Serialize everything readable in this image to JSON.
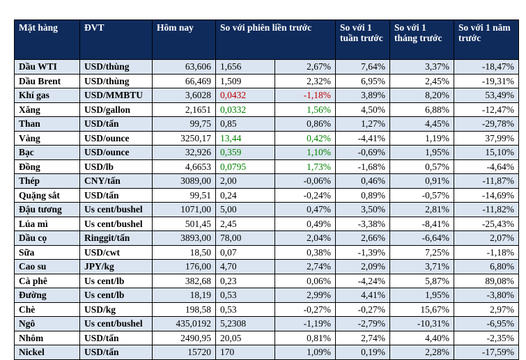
{
  "headers": {
    "item": "Mặt hàng",
    "unit": "ĐVT",
    "today": "Hôm nay",
    "vs_prev": "So với phiên liền trước",
    "vs_week": "So với 1 tuần trước",
    "vs_month": "So với 1 tháng trước",
    "vs_year": "So với 1 năm trước"
  },
  "rows": [
    {
      "item": "Dầu WTI",
      "unit": "USD/thùng",
      "today": "63,606",
      "chg": "1,656",
      "pct": "2,67%",
      "week": "7,64%",
      "month": "3,37%",
      "year": "-18,47%",
      "color": ""
    },
    {
      "item": "Dầu Brent",
      "unit": "USD/thùng",
      "today": "66,469",
      "chg": "1,509",
      "pct": "2,32%",
      "week": "6,95%",
      "month": "2,45%",
      "year": "-19,31%",
      "color": ""
    },
    {
      "item": "Khí gas",
      "unit": "USD/MMBTU",
      "today": "3,6028",
      "chg": "0,0432",
      "pct": "-1,18%",
      "week": "3,89%",
      "month": "8,20%",
      "year": "53,49%",
      "color": "red"
    },
    {
      "item": "Xăng",
      "unit": "USD/gallon",
      "today": "2,1651",
      "chg": "0,0332",
      "pct": "1,56%",
      "week": "4,50%",
      "month": "6,88%",
      "year": "-12,47%",
      "color": "green"
    },
    {
      "item": "Than",
      "unit": "USD/tấn",
      "today": "99,75",
      "chg": "0,85",
      "pct": "0,86%",
      "week": "1,27%",
      "month": "4,45%",
      "year": "-29,78%",
      "color": ""
    },
    {
      "item": "Vàng",
      "unit": "USD/ounce",
      "today": "3250,17",
      "chg": "13,44",
      "pct": "0,42%",
      "week": "-4,41%",
      "month": "1,19%",
      "year": "37,99%",
      "color": "green"
    },
    {
      "item": "Bạc",
      "unit": "USD/ounce",
      "today": "32,926",
      "chg": "0,359",
      "pct": "1,10%",
      "week": "-0,69%",
      "month": "1,95%",
      "year": "15,10%",
      "color": "green"
    },
    {
      "item": "Đồng",
      "unit": "USD/lb",
      "today": "4,6653",
      "chg": "0,0795",
      "pct": "1,73%",
      "week": "-1,68%",
      "month": "0,57%",
      "year": "-4,64%",
      "color": "green"
    },
    {
      "item": "Thép",
      "unit": "CNY/tấn",
      "today": "3089,00",
      "chg": "2,00",
      "pct": "-0,06%",
      "week": "0,46%",
      "month": "0,91%",
      "year": "-11,87%",
      "color": ""
    },
    {
      "item": "Quặng sắt",
      "unit": "USD/tấn",
      "today": "99,51",
      "chg": "0,24",
      "pct": "-0,24%",
      "week": "0,89%",
      "month": "-0,57%",
      "year": "-14,69%",
      "color": ""
    },
    {
      "item": "Đậu tương",
      "unit": "Us cent/bushel",
      "today": "1071,00",
      "chg": "5,00",
      "pct": "0,47%",
      "week": "3,50%",
      "month": "2,81%",
      "year": "-11,82%",
      "color": ""
    },
    {
      "item": "Lúa mì",
      "unit": "Us cent/bushel",
      "today": "501,45",
      "chg": "2,45",
      "pct": "0,49%",
      "week": "-3,38%",
      "month": "-8,41%",
      "year": "-25,43%",
      "color": ""
    },
    {
      "item": "Dầu cọ",
      "unit": "Ringgit/tấn",
      "today": "3893,00",
      "chg": "78,00",
      "pct": "2,04%",
      "week": "2,66%",
      "month": "-6,64%",
      "year": "2,07%",
      "color": ""
    },
    {
      "item": "Sữa",
      "unit": "USD/cwt",
      "today": "18,50",
      "chg": "0,07",
      "pct": "0,38%",
      "week": "-1,39%",
      "month": "7,25%",
      "year": "-1,18%",
      "color": ""
    },
    {
      "item": "Cao su",
      "unit": "JPY/kg",
      "today": "176,00",
      "chg": "4,70",
      "pct": "2,74%",
      "week": "2,09%",
      "month": "3,71%",
      "year": "6,80%",
      "color": ""
    },
    {
      "item": "Cà phê",
      "unit": "Us cent/lb",
      "today": "382,68",
      "chg": "0,23",
      "pct": "0,06%",
      "week": "-4,24%",
      "month": "5,87%",
      "year": "89,08%",
      "color": ""
    },
    {
      "item": "Đường",
      "unit": "Us cent/lb",
      "today": "18,19",
      "chg": "0,53",
      "pct": "2,99%",
      "week": "4,41%",
      "month": "1,95%",
      "year": "-3,80%",
      "color": ""
    },
    {
      "item": "Chè",
      "unit": "USD/kg",
      "today": "198,58",
      "chg": "0,53",
      "pct": "-0,27%",
      "week": "-0,27%",
      "month": "15,67%",
      "year": "2,97%",
      "color": ""
    },
    {
      "item": "Ngô",
      "unit": "Us cent/bushel",
      "today": "435,0192",
      "chg": "5,2308",
      "pct": "-1,19%",
      "week": "-2,79%",
      "month": "-10,31%",
      "year": "-6,95%",
      "color": ""
    },
    {
      "item": "Nhôm",
      "unit": "USD/tấn",
      "today": "2490,95",
      "chg": "20,05",
      "pct": "0,81%",
      "week": "2,74%",
      "month": "4,40%",
      "year": "-2,35%",
      "color": ""
    },
    {
      "item": "Nickel",
      "unit": "USD/tấn",
      "today": "15720",
      "chg": "170",
      "pct": "1,09%",
      "week": "0,19%",
      "month": "2,28%",
      "year": "-17,59%",
      "color": ""
    }
  ]
}
